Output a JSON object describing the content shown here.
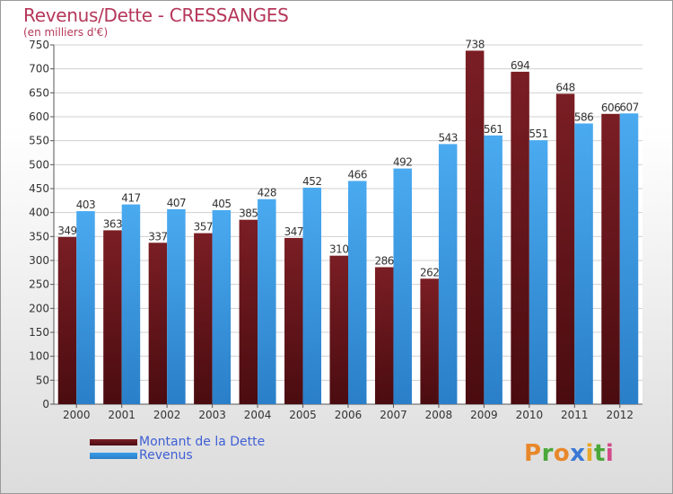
{
  "header": {
    "title": "Revenus/Dette - CRESSANGES",
    "subtitle": "(en milliers d'€)"
  },
  "colors": {
    "dette": "#7a1e24",
    "revenus": "#3a9ce8",
    "title": "#b5375a",
    "legend_text": "#3f5fd4"
  },
  "legend": {
    "dette_label": "Montant de la Dette",
    "revenus_label": "Revenus"
  },
  "logo": {
    "text": "Proxiti"
  },
  "chart_data": {
    "type": "bar",
    "title": "Revenus/Dette - CRESSANGES",
    "subtitle": "(en milliers d'€)",
    "categories": [
      "2000",
      "2001",
      "2002",
      "2003",
      "2004",
      "2005",
      "2006",
      "2007",
      "2008",
      "2009",
      "2010",
      "2011",
      "2012"
    ],
    "series": [
      {
        "name": "Montant de la Dette",
        "color": "#7a1e24",
        "values": [
          349,
          363,
          337,
          357,
          385,
          347,
          310,
          286,
          262,
          738,
          694,
          648,
          606
        ]
      },
      {
        "name": "Revenus",
        "color": "#3a9ce8",
        "values": [
          403,
          417,
          407,
          405,
          428,
          452,
          466,
          492,
          543,
          561,
          551,
          586,
          607
        ]
      }
    ],
    "ylim": [
      0,
      750
    ],
    "yticks": [
      0,
      50,
      100,
      150,
      200,
      250,
      300,
      350,
      400,
      450,
      500,
      550,
      600,
      650,
      700,
      750
    ],
    "grid": true,
    "legend_position": "bottom-left"
  }
}
